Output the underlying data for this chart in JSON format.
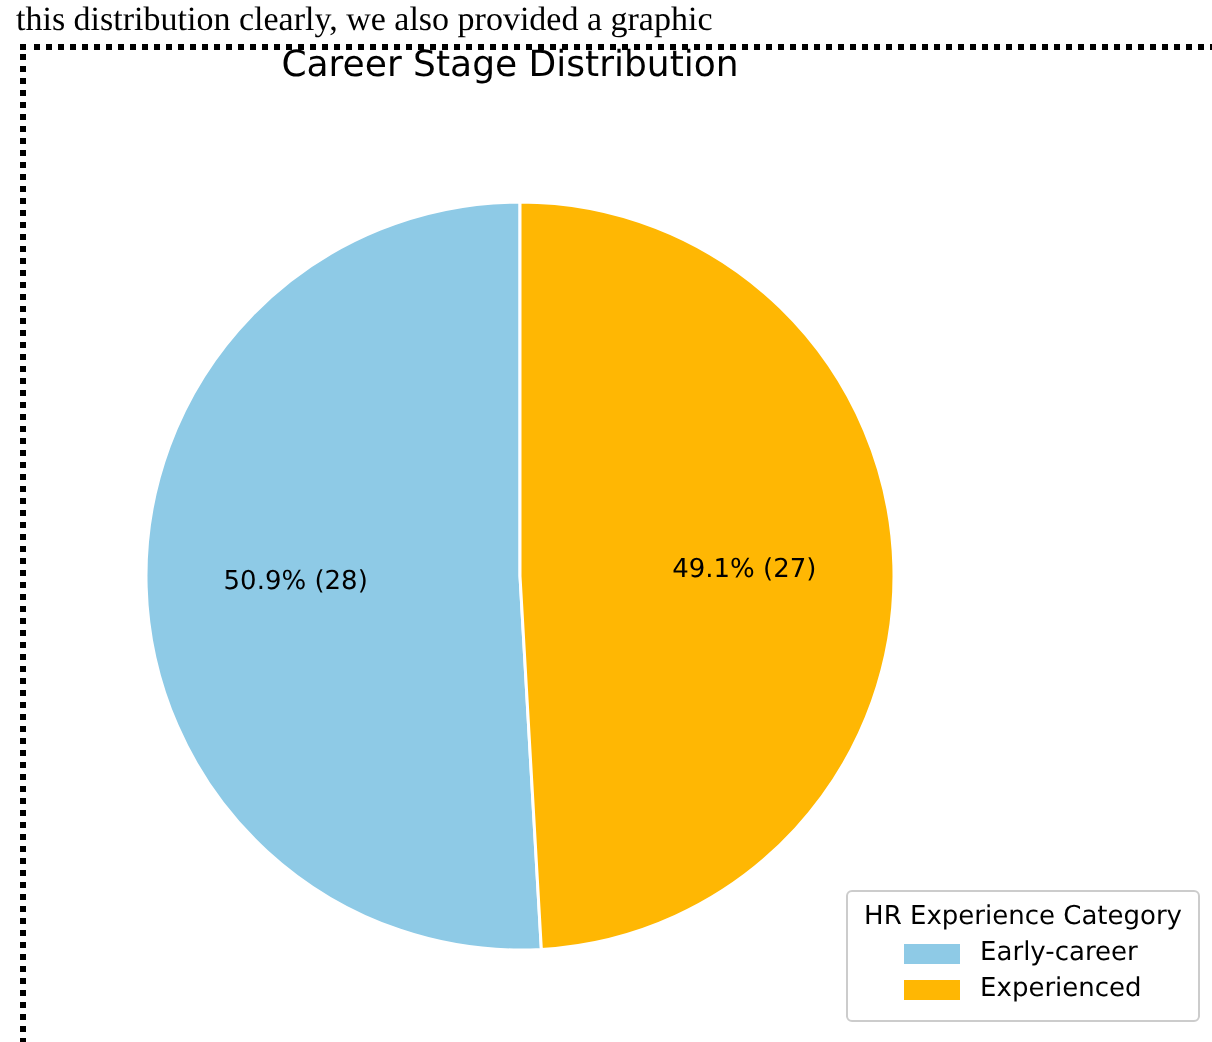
{
  "chart_data": {
    "type": "pie",
    "title": "Career Stage Distribution",
    "annotations": [
      "this distribution clearly, we also provided a graphic"
    ],
    "categories": [
      "Early-career",
      "Experienced"
    ],
    "values": [
      28,
      27
    ],
    "colors": [
      "#8ecae6",
      "#ffb703"
    ],
    "value_labels": [
      "50.9% (28)",
      "49.1% (27)"
    ],
    "legend_title": "HR Experience Category",
    "legend": "bottom right"
  }
}
